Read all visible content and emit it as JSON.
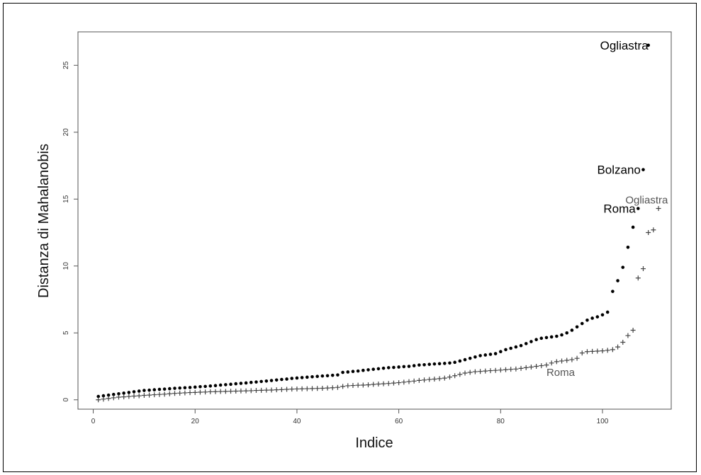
{
  "chart_data": {
    "type": "scatter",
    "title": "",
    "xlabel": "Indice",
    "ylabel": "Distanza di Mahalanobis",
    "xlim": [
      -3,
      113.5
    ],
    "ylim": [
      -0.7,
      27.5
    ],
    "x_ticks": [
      0,
      20,
      40,
      60,
      80,
      100
    ],
    "y_ticks": [
      0,
      5,
      10,
      15,
      20,
      25
    ],
    "grid": false,
    "legend": "none",
    "series": [
      {
        "marker": "dot",
        "color": "#000000",
        "x_start": 1,
        "values": [
          0.25,
          0.3,
          0.35,
          0.4,
          0.45,
          0.5,
          0.55,
          0.6,
          0.65,
          0.7,
          0.72,
          0.75,
          0.78,
          0.8,
          0.83,
          0.86,
          0.88,
          0.9,
          0.92,
          0.95,
          0.98,
          1.0,
          1.03,
          1.06,
          1.1,
          1.13,
          1.16,
          1.2,
          1.23,
          1.26,
          1.3,
          1.33,
          1.37,
          1.4,
          1.44,
          1.48,
          1.52,
          1.55,
          1.6,
          1.63,
          1.66,
          1.69,
          1.72,
          1.75,
          1.78,
          1.8,
          1.83,
          1.86,
          2.05,
          2.08,
          2.12,
          2.15,
          2.2,
          2.24,
          2.28,
          2.32,
          2.36,
          2.4,
          2.42,
          2.45,
          2.48,
          2.5,
          2.55,
          2.6,
          2.62,
          2.65,
          2.68,
          2.7,
          2.72,
          2.75,
          2.8,
          2.9,
          3.0,
          3.1,
          3.2,
          3.3,
          3.35,
          3.4,
          3.45,
          3.6,
          3.75,
          3.85,
          3.95,
          4.05,
          4.2,
          4.35,
          4.5,
          4.6,
          4.65,
          4.7,
          4.75,
          4.85,
          5.0,
          5.2,
          5.45,
          5.7,
          5.95,
          6.1,
          6.2,
          6.35,
          6.55,
          8.1,
          8.9,
          9.9,
          11.4,
          12.9,
          14.3,
          17.2,
          26.5
        ]
      },
      {
        "marker": "plus",
        "color": "#444444",
        "x_start": 1,
        "values": [
          0.0,
          0.05,
          0.1,
          0.15,
          0.2,
          0.22,
          0.25,
          0.28,
          0.3,
          0.33,
          0.35,
          0.38,
          0.4,
          0.42,
          0.45,
          0.48,
          0.5,
          0.52,
          0.54,
          0.55,
          0.57,
          0.58,
          0.6,
          0.61,
          0.62,
          0.63,
          0.64,
          0.65,
          0.66,
          0.67,
          0.68,
          0.7,
          0.71,
          0.72,
          0.73,
          0.75,
          0.76,
          0.78,
          0.8,
          0.81,
          0.82,
          0.83,
          0.84,
          0.85,
          0.86,
          0.88,
          0.9,
          0.93,
          1.0,
          1.05,
          1.07,
          1.09,
          1.1,
          1.12,
          1.15,
          1.18,
          1.2,
          1.22,
          1.25,
          1.28,
          1.32,
          1.36,
          1.4,
          1.45,
          1.48,
          1.52,
          1.55,
          1.58,
          1.62,
          1.7,
          1.8,
          1.9,
          2.0,
          2.05,
          2.1,
          2.12,
          2.15,
          2.18,
          2.2,
          2.22,
          2.25,
          2.28,
          2.3,
          2.35,
          2.4,
          2.45,
          2.5,
          2.55,
          2.6,
          2.75,
          2.85,
          2.9,
          2.95,
          3.0,
          3.1,
          3.5,
          3.6,
          3.62,
          3.64,
          3.66,
          3.7,
          3.75,
          3.95,
          4.3,
          4.8,
          5.2,
          9.1,
          9.8,
          12.5,
          12.7,
          14.3
        ]
      }
    ],
    "annotations": [
      {
        "text": "Ogliastra",
        "x": 109,
        "y": 26.5,
        "anchor": "end",
        "style": "black"
      },
      {
        "text": "Bolzano",
        "x": 107.5,
        "y": 17.2,
        "anchor": "end",
        "style": "black"
      },
      {
        "text": "Roma",
        "x": 106.5,
        "y": 14.3,
        "anchor": "end",
        "style": "black"
      },
      {
        "text": "Ogliastra",
        "x": 104.5,
        "y": 15.0,
        "anchor": "start",
        "style": "gray"
      },
      {
        "text": "Roma",
        "x": 89,
        "y": 2.1,
        "anchor": "start",
        "style": "gray"
      }
    ]
  }
}
